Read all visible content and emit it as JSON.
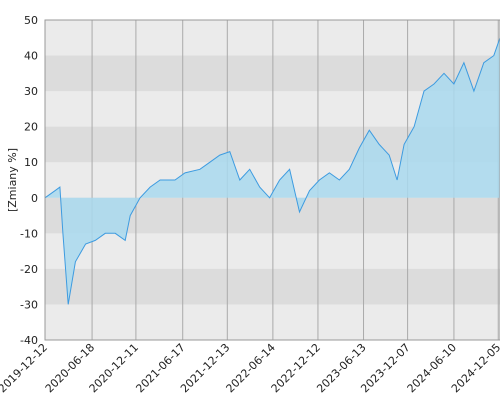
{
  "chart_data": {
    "type": "area",
    "ylabel": "[Zmiany %]",
    "x": [
      "2019-12-12",
      "2020-01-21",
      "2020-02-10",
      "2020-02-22",
      "2020-03-14",
      "2020-04-12",
      "2020-05-23",
      "2020-07-01",
      "2020-08-10",
      "2020-09-19",
      "2020-10-29",
      "2020-11-18",
      "2020-12-28",
      "2021-02-06",
      "2021-03-18",
      "2021-05-17",
      "2021-06-26",
      "2021-08-25",
      "2021-10-04",
      "2021-11-13",
      "2021-12-23",
      "2022-02-01",
      "2022-03-13",
      "2022-04-22",
      "2022-06-01",
      "2022-07-11",
      "2022-08-20",
      "2022-09-29",
      "2022-11-08",
      "2022-12-18",
      "2023-01-27",
      "2023-03-08",
      "2023-04-17",
      "2023-05-27",
      "2023-07-06",
      "2023-08-15",
      "2023-09-24",
      "2023-10-26",
      "2023-11-23",
      "2024-01-02",
      "2024-02-11",
      "2024-03-22",
      "2024-05-01",
      "2024-06-10",
      "2024-07-20",
      "2024-08-29",
      "2024-10-08",
      "2024-11-17",
      "2024-12-12"
    ],
    "series": [
      {
        "color": "#3d9be0",
        "fill": "#a9d9ee",
        "values": [
          0,
          2,
          3,
          -10,
          -30,
          -18,
          -13,
          -12,
          -10,
          -10,
          -12,
          -5,
          0,
          3,
          5,
          5,
          7,
          8,
          10,
          12,
          13,
          5,
          8,
          3,
          0,
          5,
          8,
          -4,
          2,
          5,
          7,
          5,
          8,
          14,
          19,
          15,
          12,
          5,
          15,
          20,
          30,
          32,
          35,
          32,
          38,
          30,
          38,
          40,
          45
        ]
      }
    ],
    "xlim": [
      "2019-12-12",
      "2024-12-12"
    ],
    "xticks": [
      "2019-12-12",
      "2020-06-18",
      "2020-12-11",
      "2021-06-17",
      "2021-12-13",
      "2022-06-14",
      "2022-12-12",
      "2023-06-13",
      "2023-12-07",
      "2024-06-10",
      "2024-12-05"
    ],
    "ylim": [
      -40,
      50
    ],
    "yticks": [
      -40,
      -30,
      -20,
      -10,
      0,
      10,
      20,
      30,
      40,
      50
    ],
    "grid": true
  }
}
